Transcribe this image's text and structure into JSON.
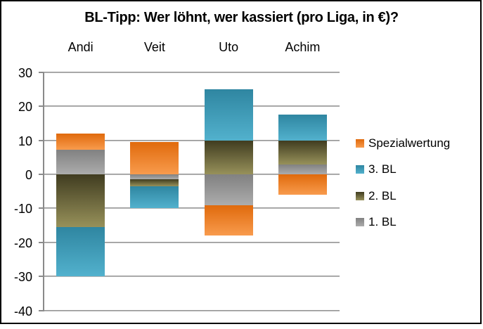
{
  "title": "BL-Tipp: Wer löhnt, wer kassiert (pro Liga, in €)?",
  "colors": {
    "spezialwertung_top": "#E06A0C",
    "spezialwertung_bottom": "#F89B4D",
    "bl3_top": "#2F86A1",
    "bl3_bottom": "#52B1CD",
    "bl2_top": "#403C20",
    "bl2_bottom": "#97915A",
    "bl1_top": "#818181",
    "bl1_bottom": "#ACACAC",
    "gridline": "#8a8a8a",
    "border": "#000000"
  },
  "chart_data": {
    "type": "bar",
    "stacked": true,
    "title": "BL-Tipp: Wer löhnt, wer kassiert (pro Liga, in €)?",
    "categories": [
      "Andi",
      "Veit",
      "Uto",
      "Achim"
    ],
    "series": [
      {
        "name": "1. BL",
        "values": [
          7.2,
          -1.5,
          -9,
          3
        ],
        "color_top": "#818181",
        "color_bottom": "#ACACAC"
      },
      {
        "name": "2. BL",
        "values": [
          -15.5,
          -2,
          10,
          7
        ],
        "color_top": "#403C20",
        "color_bottom": "#97915A"
      },
      {
        "name": "3. BL",
        "values": [
          -14.5,
          -6.5,
          15,
          7.5
        ],
        "color_top": "#2F86A1",
        "color_bottom": "#52B1CD"
      },
      {
        "name": "Spezialwertung",
        "values": [
          4.8,
          9.5,
          -9,
          -6
        ],
        "color_top": "#E06A0C",
        "color_bottom": "#F89B4D"
      }
    ],
    "legend_order": [
      "Spezialwertung",
      "3. BL",
      "2. BL",
      "1. BL"
    ],
    "legend_position": "right",
    "ylim": [
      -40,
      30
    ],
    "yticks": [
      30,
      20,
      10,
      0,
      -10,
      -20,
      -30,
      -40
    ],
    "grid": true,
    "xlabel": "",
    "ylabel": ""
  }
}
